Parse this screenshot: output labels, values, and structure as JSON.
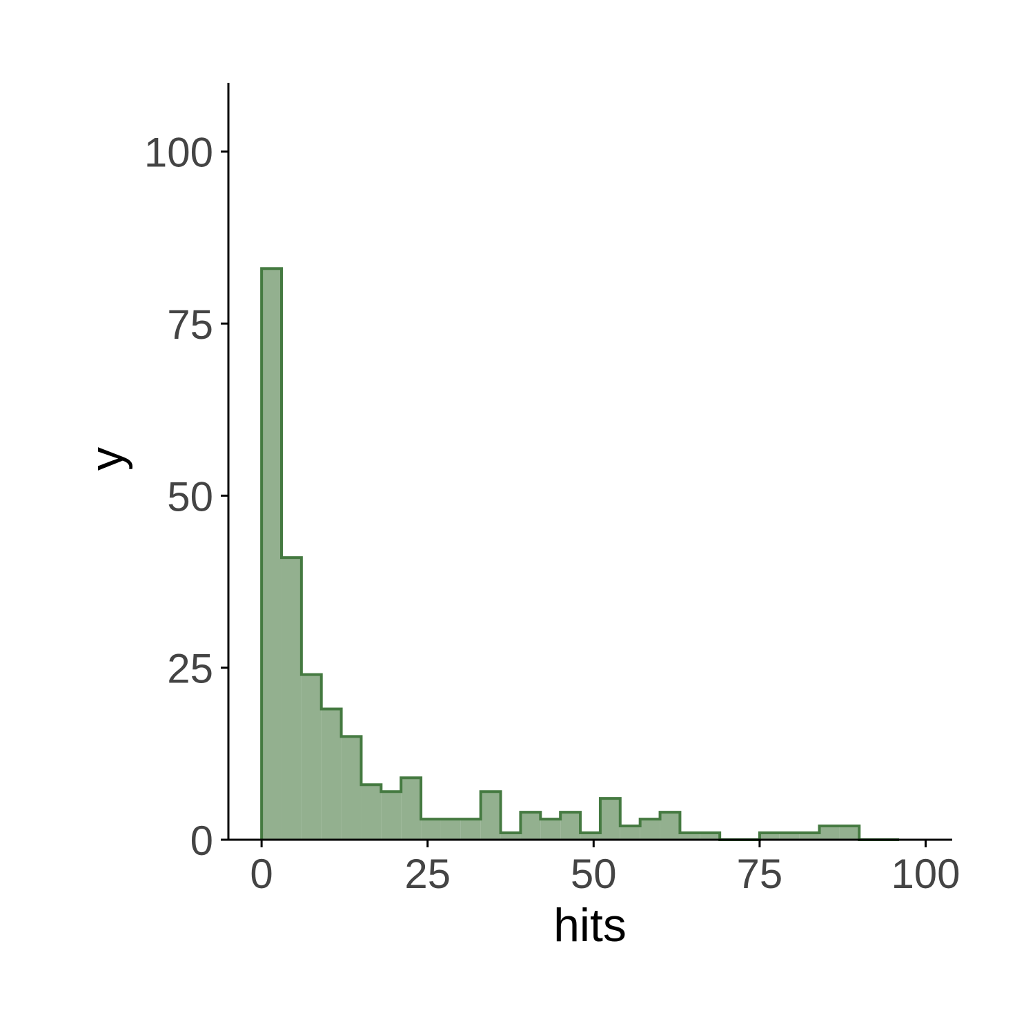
{
  "chart_data": {
    "type": "histogram",
    "xlabel": "hits",
    "ylabel": "y",
    "xlim": [
      -5,
      104
    ],
    "ylim": [
      0,
      110
    ],
    "x_ticks": [
      0,
      25,
      50,
      75,
      100
    ],
    "y_ticks": [
      0,
      25,
      50,
      75,
      100
    ],
    "x_tick_labels": [
      "0",
      "25",
      "50",
      "75",
      "100"
    ],
    "y_tick_labels": [
      "0",
      "25",
      "50",
      "75",
      "100"
    ],
    "bin_start": 0,
    "bin_width": 3,
    "counts": [
      83,
      41,
      24,
      19,
      15,
      8,
      7,
      9,
      3,
      3,
      3,
      7,
      1,
      4,
      3,
      4,
      1,
      6,
      2,
      3,
      4,
      1,
      1,
      0,
      0,
      1,
      1,
      1,
      2,
      2,
      0,
      0
    ],
    "grid": false,
    "legend": "none",
    "colors": {
      "fill": "#93b08f",
      "outline": "#457a41",
      "axis": "#000000",
      "tick_text": "#444444"
    }
  }
}
